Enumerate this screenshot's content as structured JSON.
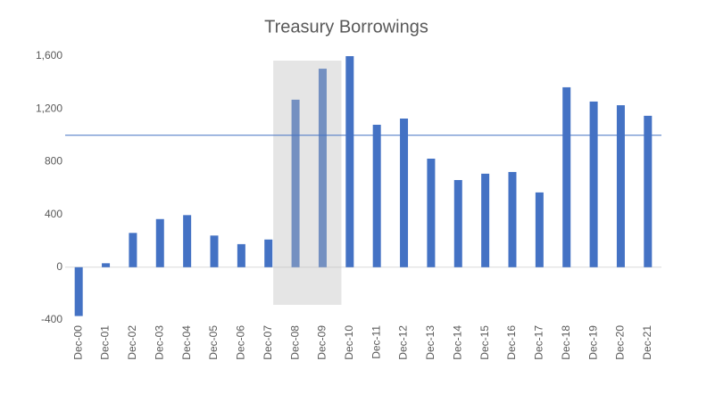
{
  "chart_data": {
    "type": "bar",
    "title": "Treasury Borrowings",
    "categories": [
      "Dec-00",
      "Dec-01",
      "Dec-02",
      "Dec-03",
      "Dec-04",
      "Dec-05",
      "Dec-06",
      "Dec-07",
      "Dec-08",
      "Dec-09",
      "Dec-10",
      "Dec-11",
      "Dec-12",
      "Dec-13",
      "Dec-14",
      "Dec-15",
      "Dec-16",
      "Dec-17",
      "Dec-18",
      "Dec-19",
      "Dec-20",
      "Dec-21"
    ],
    "values": [
      -370,
      30,
      260,
      365,
      395,
      240,
      175,
      210,
      1270,
      1505,
      1600,
      1080,
      1127,
      823,
      661,
      709,
      722,
      567,
      1364,
      1256,
      1228,
      1148
    ],
    "color": "#4472c4",
    "ylim": [
      -400,
      1600
    ],
    "yticks": [
      -400,
      0,
      400,
      800,
      {
        "value": 1200,
        "label": "1,200"
      },
      {
        "value": 1600,
        "label": "1,600"
      }
    ],
    "reference_line": 1000,
    "reference_color": "#4472c4",
    "highlight": [
      8,
      9
    ],
    "grid": false
  }
}
